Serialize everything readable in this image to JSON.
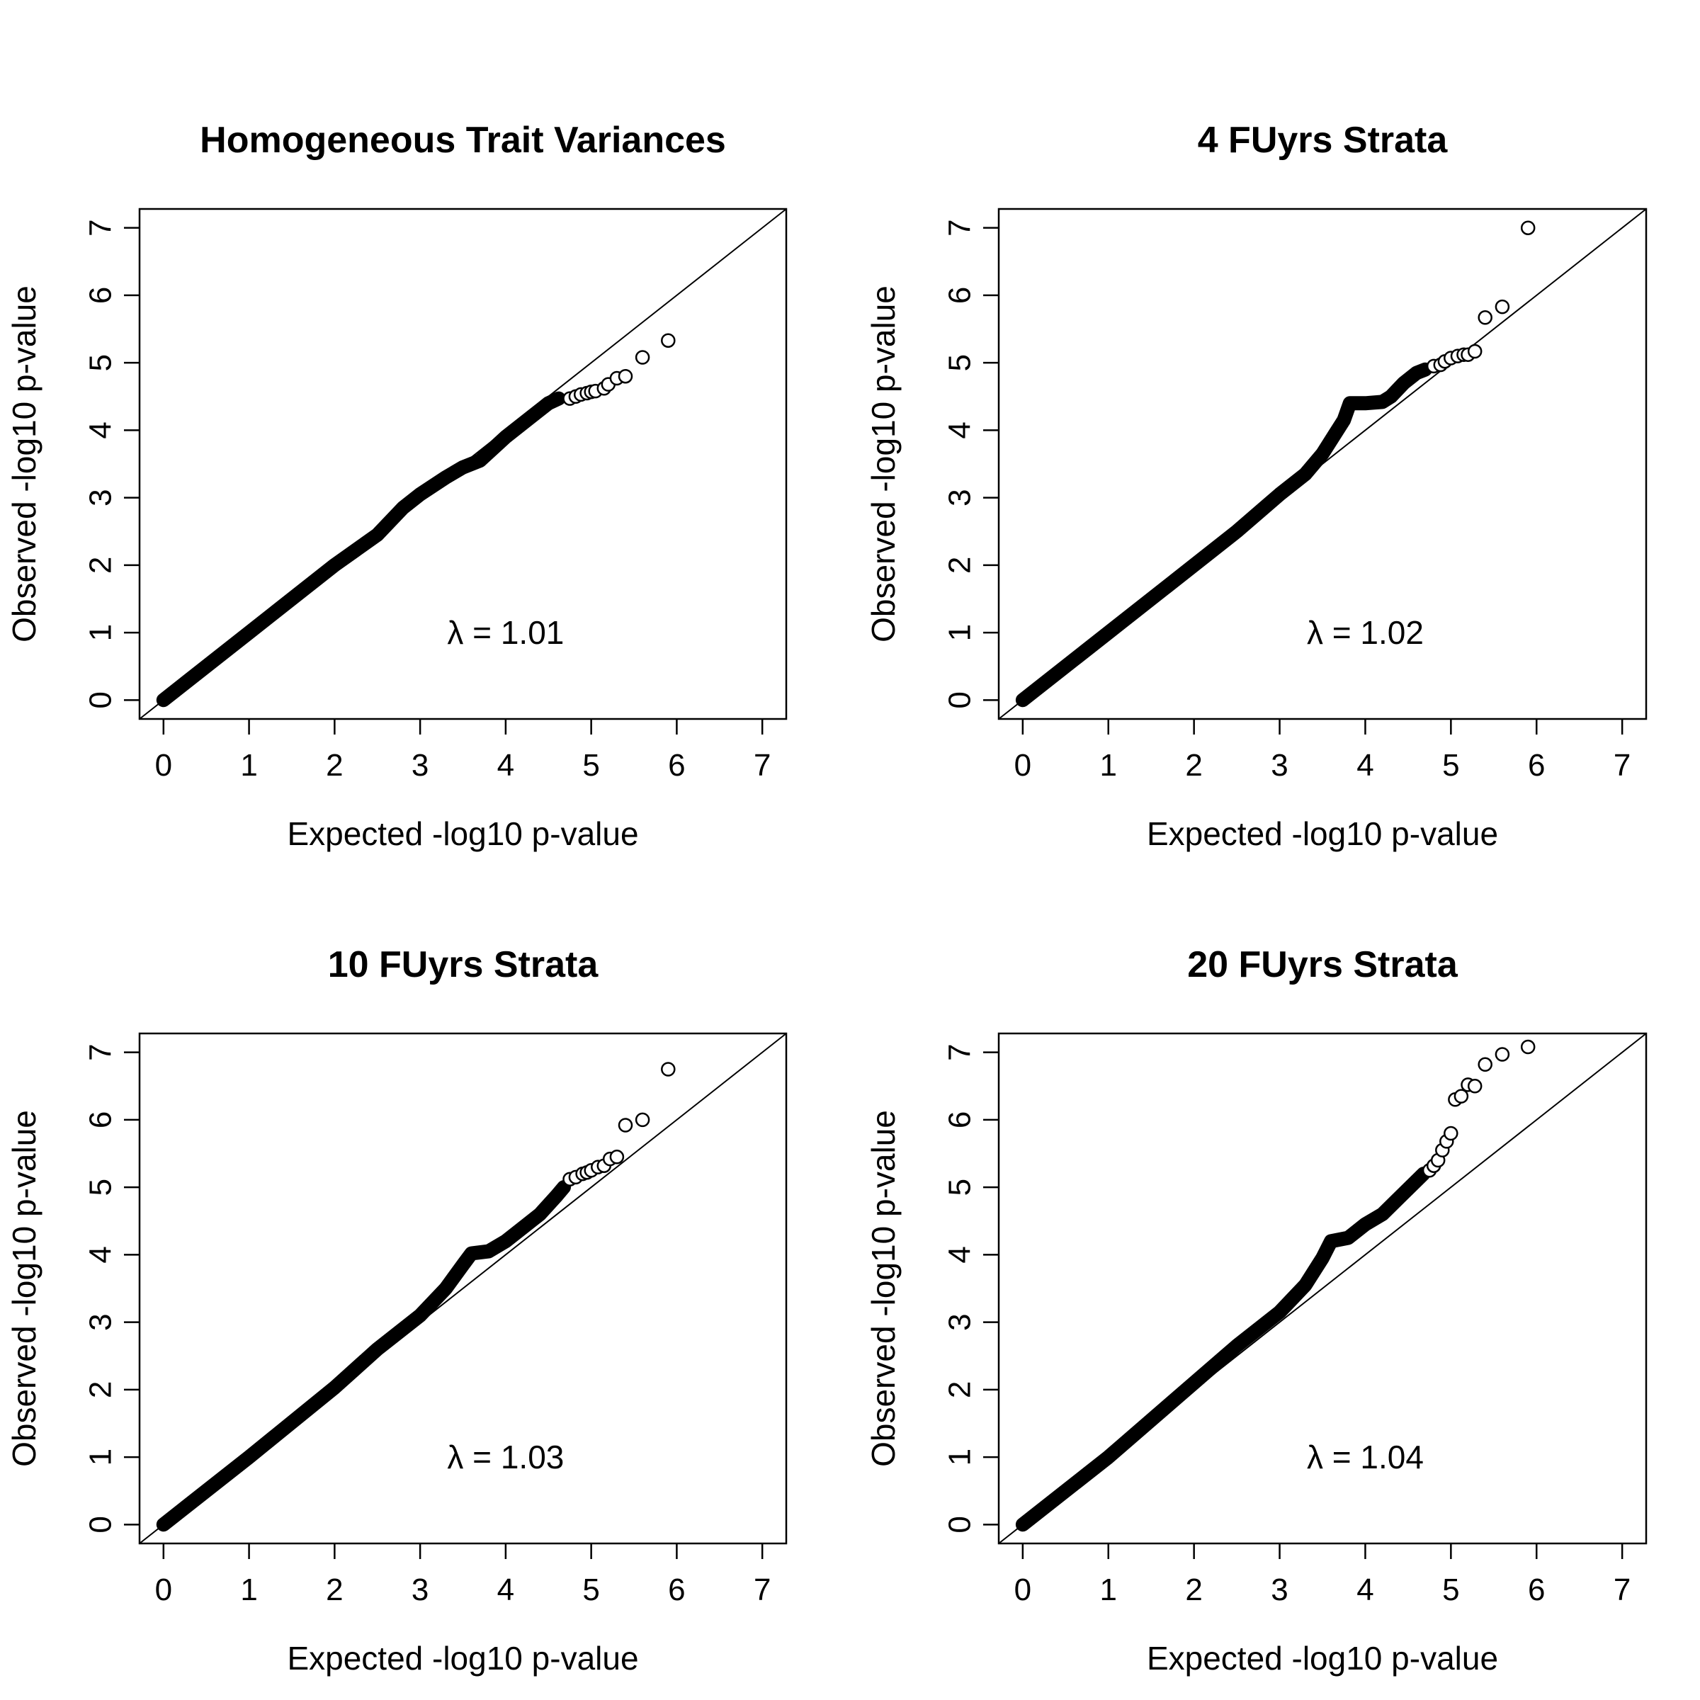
{
  "chart_data": [
    {
      "type": "scatter",
      "title": "Homogeneous Trait Variances",
      "xlabel": "Expected -log10 p-value",
      "ylabel": "Observed -log10 p-value",
      "xlim": [
        0,
        7
      ],
      "ylim": [
        0,
        7
      ],
      "xticks": [
        "0",
        "1",
        "2",
        "3",
        "4",
        "5",
        "6",
        "7"
      ],
      "yticks": [
        "0",
        "1",
        "2",
        "3",
        "4",
        "5",
        "6",
        "7"
      ],
      "reference_line": "y = x",
      "annotation": "λ = 1.01",
      "bulk_curve": [
        [
          0,
          0
        ],
        [
          1,
          1.0
        ],
        [
          2,
          2.0
        ],
        [
          2.5,
          2.45
        ],
        [
          2.8,
          2.85
        ],
        [
          3.0,
          3.05
        ],
        [
          3.3,
          3.3
        ],
        [
          3.5,
          3.45
        ],
        [
          3.7,
          3.55
        ],
        [
          4.0,
          3.9
        ],
        [
          4.3,
          4.2
        ],
        [
          4.5,
          4.4
        ],
        [
          4.62,
          4.47
        ]
      ],
      "points": [
        [
          4.75,
          4.47
        ],
        [
          4.82,
          4.5
        ],
        [
          4.88,
          4.53
        ],
        [
          4.95,
          4.55
        ],
        [
          5.0,
          4.57
        ],
        [
          5.05,
          4.58
        ],
        [
          5.15,
          4.62
        ],
        [
          5.2,
          4.68
        ],
        [
          5.3,
          4.77
        ],
        [
          5.4,
          4.8
        ],
        [
          5.6,
          5.08
        ],
        [
          5.9,
          5.33
        ]
      ]
    },
    {
      "type": "scatter",
      "title": "4 FUyrs Strata",
      "xlabel": "Expected -log10 p-value",
      "ylabel": "Observed -log10 p-value",
      "xlim": [
        0,
        7
      ],
      "ylim": [
        0,
        7
      ],
      "xticks": [
        "0",
        "1",
        "2",
        "3",
        "4",
        "5",
        "6",
        "7"
      ],
      "yticks": [
        "0",
        "1",
        "2",
        "3",
        "4",
        "5",
        "6",
        "7"
      ],
      "reference_line": "y = x",
      "annotation": "λ = 1.02",
      "bulk_curve": [
        [
          0,
          0
        ],
        [
          1,
          1.0
        ],
        [
          2,
          2.0
        ],
        [
          2.5,
          2.5
        ],
        [
          3.0,
          3.05
        ],
        [
          3.3,
          3.35
        ],
        [
          3.5,
          3.65
        ],
        [
          3.65,
          3.95
        ],
        [
          3.75,
          4.15
        ],
        [
          3.82,
          4.4
        ],
        [
          4.0,
          4.4
        ],
        [
          4.2,
          4.42
        ],
        [
          4.3,
          4.5
        ],
        [
          4.45,
          4.7
        ],
        [
          4.6,
          4.85
        ],
        [
          4.7,
          4.9
        ]
      ],
      "points": [
        [
          4.8,
          4.95
        ],
        [
          4.88,
          4.97
        ],
        [
          4.93,
          5.02
        ],
        [
          5.0,
          5.07
        ],
        [
          5.08,
          5.1
        ],
        [
          5.15,
          5.12
        ],
        [
          5.2,
          5.12
        ],
        [
          5.28,
          5.17
        ],
        [
          5.4,
          5.67
        ],
        [
          5.6,
          5.83
        ],
        [
          5.9,
          7.0
        ]
      ]
    },
    {
      "type": "scatter",
      "title": "10 FUyrs Strata",
      "xlabel": "Expected -log10 p-value",
      "ylabel": "Observed -log10 p-value",
      "xlim": [
        0,
        7
      ],
      "ylim": [
        0,
        7
      ],
      "xticks": [
        "0",
        "1",
        "2",
        "3",
        "4",
        "5",
        "6",
        "7"
      ],
      "yticks": [
        "0",
        "1",
        "2",
        "3",
        "4",
        "5",
        "6",
        "7"
      ],
      "reference_line": "y = x",
      "annotation": "λ = 1.03",
      "bulk_curve": [
        [
          0,
          0
        ],
        [
          1,
          1.0
        ],
        [
          2,
          2.03
        ],
        [
          2.5,
          2.6
        ],
        [
          3.0,
          3.1
        ],
        [
          3.3,
          3.5
        ],
        [
          3.5,
          3.85
        ],
        [
          3.6,
          4.02
        ],
        [
          3.8,
          4.05
        ],
        [
          4.0,
          4.2
        ],
        [
          4.2,
          4.4
        ],
        [
          4.4,
          4.6
        ],
        [
          4.6,
          4.88
        ],
        [
          4.68,
          5.0
        ]
      ],
      "points": [
        [
          4.75,
          5.12
        ],
        [
          4.82,
          5.15
        ],
        [
          4.9,
          5.2
        ],
        [
          4.95,
          5.22
        ],
        [
          5.0,
          5.25
        ],
        [
          5.08,
          5.3
        ],
        [
          5.15,
          5.32
        ],
        [
          5.22,
          5.42
        ],
        [
          5.3,
          5.45
        ],
        [
          5.4,
          5.92
        ],
        [
          5.6,
          6.0
        ],
        [
          5.9,
          6.75
        ]
      ]
    },
    {
      "type": "scatter",
      "title": "20 FUyrs Strata",
      "xlabel": "Expected -log10 p-value",
      "ylabel": "Observed -log10 p-value",
      "xlim": [
        0,
        7
      ],
      "ylim": [
        0,
        7
      ],
      "xticks": [
        "0",
        "1",
        "2",
        "3",
        "4",
        "5",
        "6",
        "7"
      ],
      "yticks": [
        "0",
        "1",
        "2",
        "3",
        "4",
        "5",
        "6",
        "7"
      ],
      "reference_line": "y = x",
      "annotation": "λ = 1.04",
      "bulk_curve": [
        [
          0,
          0
        ],
        [
          1,
          1.0
        ],
        [
          2,
          2.1
        ],
        [
          2.5,
          2.65
        ],
        [
          3.0,
          3.15
        ],
        [
          3.3,
          3.55
        ],
        [
          3.5,
          3.95
        ],
        [
          3.6,
          4.2
        ],
        [
          3.8,
          4.25
        ],
        [
          4.0,
          4.45
        ],
        [
          4.2,
          4.6
        ],
        [
          4.4,
          4.85
        ],
        [
          4.6,
          5.1
        ],
        [
          4.68,
          5.2
        ]
      ],
      "points": [
        [
          4.75,
          5.25
        ],
        [
          4.8,
          5.32
        ],
        [
          4.85,
          5.4
        ],
        [
          4.9,
          5.55
        ],
        [
          4.95,
          5.68
        ],
        [
          5.0,
          5.8
        ],
        [
          5.05,
          6.3
        ],
        [
          5.12,
          6.35
        ],
        [
          5.2,
          6.52
        ],
        [
          5.28,
          6.5
        ],
        [
          5.4,
          6.82
        ],
        [
          5.6,
          6.97
        ],
        [
          5.9,
          7.08
        ]
      ]
    }
  ]
}
